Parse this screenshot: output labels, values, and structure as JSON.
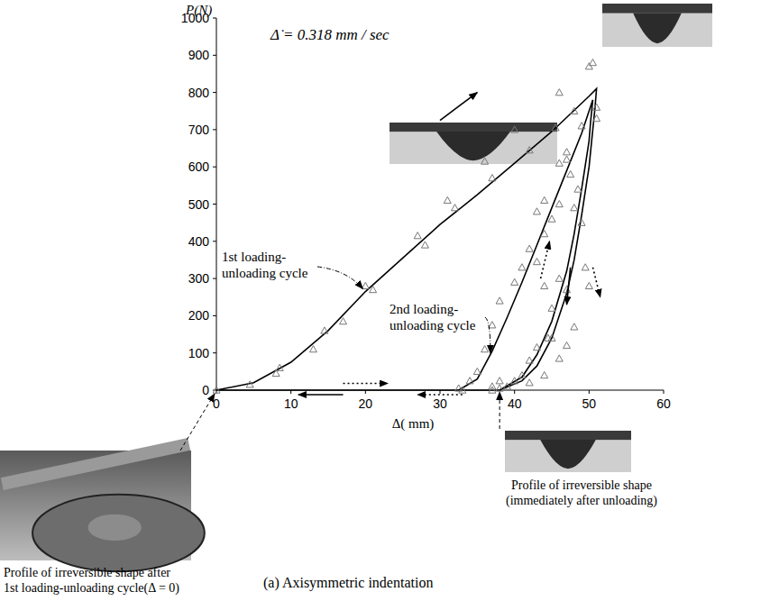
{
  "chart_data": {
    "type": "line",
    "title": "(a) Axisymmetric indentation",
    "x_label": "Δ( mm)",
    "y_label": "P(N)",
    "xlim": [
      0,
      60
    ],
    "ylim": [
      0,
      1000
    ],
    "xticks": [
      0,
      10,
      20,
      30,
      40,
      50,
      60
    ],
    "yticks": [
      0,
      100,
      200,
      300,
      400,
      500,
      600,
      700,
      800,
      900,
      1000
    ],
    "grid": false,
    "annotations": [
      {
        "text": [
          "1st loading-",
          "unloading cycle"
        ]
      },
      {
        "text": [
          "2nd loading-",
          "unloading cycle"
        ]
      },
      {
        "text": [
          "Profile of irreversible shape",
          "(immediately after unloading)"
        ]
      },
      {
        "text": [
          "Profile of irreversible shape after",
          "1st loading-unloading cycle(Δ = 0)"
        ]
      },
      {
        "text": [
          "Δ̇ = 0.318 mm / sec"
        ]
      }
    ],
    "series": [
      {
        "type": "line",
        "color": "#000000",
        "line_style": "solid",
        "x": [
          0,
          5,
          10,
          15,
          20,
          25,
          30,
          35,
          40,
          45,
          50,
          51,
          50.8,
          50.5,
          50,
          49,
          48,
          47,
          45,
          43,
          41,
          38,
          0
        ],
        "values": [
          0,
          20,
          75,
          160,
          265,
          355,
          445,
          525,
          610,
          695,
          790,
          810,
          760,
          700,
          600,
          470,
          350,
          260,
          140,
          65,
          25,
          0,
          0
        ]
      },
      {
        "type": "line",
        "color": "#000000",
        "line_style": "solid",
        "x": [
          32.5,
          35,
          37,
          39,
          41,
          43,
          45,
          47,
          49,
          50.5,
          50.2,
          50,
          49,
          48,
          47,
          45,
          43,
          41,
          38
        ],
        "values": [
          0,
          30,
          105,
          195,
          290,
          390,
          490,
          590,
          690,
          780,
          720,
          670,
          540,
          420,
          320,
          185,
          95,
          35,
          0
        ]
      },
      {
        "type": "scatter",
        "color": "#777777",
        "marker": "triangle",
        "x": [
          0,
          4.5,
          8,
          8.5,
          13,
          14.5,
          17,
          20,
          21,
          27,
          28,
          31,
          32,
          36,
          37,
          40,
          42,
          46,
          48,
          49,
          50,
          50.5,
          51,
          51,
          45.5,
          47,
          47.5,
          46,
          45,
          44,
          43,
          42,
          44,
          45,
          46,
          47,
          45,
          44.5,
          43,
          42,
          41,
          40,
          39,
          38,
          37,
          33,
          32.5,
          34,
          35,
          36,
          37,
          38,
          40,
          41,
          43,
          44,
          46,
          47,
          48,
          48.5,
          49,
          49.5,
          50,
          48,
          47,
          46,
          44,
          42,
          37,
          38
        ],
        "values": [
          0,
          15,
          45,
          60,
          110,
          160,
          185,
          280,
          270,
          415,
          390,
          510,
          490,
          615,
          570,
          700,
          645,
          800,
          750,
          710,
          870,
          880,
          760,
          730,
          705,
          620,
          580,
          500,
          460,
          420,
          345,
          380,
          280,
          220,
          300,
          270,
          140,
          140,
          115,
          80,
          40,
          25,
          10,
          5,
          0,
          0,
          5,
          25,
          50,
          110,
          175,
          240,
          290,
          330,
          480,
          510,
          610,
          640,
          490,
          540,
          450,
          330,
          280,
          170,
          120,
          85,
          40,
          20,
          10,
          25
        ]
      }
    ]
  }
}
